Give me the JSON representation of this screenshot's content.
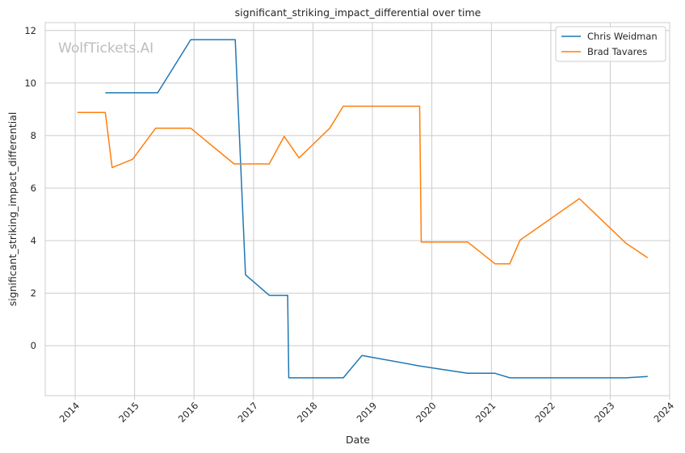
{
  "chart_data": {
    "type": "line",
    "title": "significant_striking_impact_differential over time",
    "xlabel": "Date",
    "ylabel": "significant_striking_impact_differential",
    "watermark": "WolfTickets.AI",
    "xlim": [
      "2013-07-01",
      "2024-01-01"
    ],
    "ylim": [
      -1.9,
      12.3
    ],
    "x_ticks": [
      "2014",
      "2015",
      "2016",
      "2017",
      "2018",
      "2019",
      "2020",
      "2021",
      "2022",
      "2023",
      "2024"
    ],
    "y_ticks": [
      "0",
      "2",
      "4",
      "6",
      "8",
      "10",
      "12"
    ],
    "grid": true,
    "legend_position": "top-right",
    "series": [
      {
        "name": "Chris Weidman",
        "color": "#1f77b4",
        "points": [
          [
            "2014-07-05",
            9.63
          ],
          [
            "2015-05-23",
            9.63
          ],
          [
            "2015-12-12",
            11.65
          ],
          [
            "2016-09-10",
            11.65
          ],
          [
            "2016-11-12",
            2.7
          ],
          [
            "2017-04-07",
            1.92
          ],
          [
            "2017-07-29",
            1.92
          ],
          [
            "2017-08-05",
            -1.22
          ],
          [
            "2018-07-06",
            -1.22
          ],
          [
            "2018-10-29",
            -0.37
          ],
          [
            "2019-10-18",
            -0.77
          ],
          [
            "2020-08-08",
            -1.05
          ],
          [
            "2021-01-23",
            -1.05
          ],
          [
            "2021-04-24",
            -1.22
          ],
          [
            "2023-04-08",
            -1.22
          ],
          [
            "2023-08-19",
            -1.17
          ]
        ]
      },
      {
        "name": "Brad Tavares",
        "color": "#ff7f0e",
        "points": [
          [
            "2014-01-15",
            8.88
          ],
          [
            "2014-07-05",
            8.88
          ],
          [
            "2014-08-16",
            6.78
          ],
          [
            "2014-12-20",
            7.1
          ],
          [
            "2015-05-10",
            8.28
          ],
          [
            "2015-12-12",
            8.28
          ],
          [
            "2016-09-03",
            6.92
          ],
          [
            "2017-04-07",
            6.92
          ],
          [
            "2017-07-08",
            7.97
          ],
          [
            "2017-10-07",
            7.15
          ],
          [
            "2018-04-14",
            8.28
          ],
          [
            "2018-07-06",
            9.12
          ],
          [
            "2019-10-18",
            9.12
          ],
          [
            "2019-10-28",
            3.95
          ],
          [
            "2020-08-08",
            3.95
          ],
          [
            "2021-01-23",
            3.12
          ],
          [
            "2021-04-24",
            3.12
          ],
          [
            "2021-06-26",
            4.02
          ],
          [
            "2022-06-25",
            5.6
          ],
          [
            "2023-04-08",
            3.9
          ],
          [
            "2023-08-19",
            3.35
          ]
        ]
      }
    ]
  }
}
